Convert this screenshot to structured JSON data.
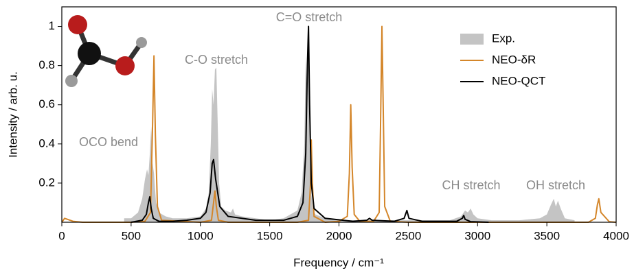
{
  "chart_data": {
    "type": "line",
    "xlabel": "Frequency / cm⁻¹",
    "ylabel": "Intensity / arb. u.",
    "xlim": [
      0,
      4000
    ],
    "ylim": [
      0,
      1.1
    ],
    "xticks": [
      0,
      500,
      1000,
      1500,
      2000,
      2500,
      3000,
      3500,
      4000
    ],
    "yticks": [
      0.2,
      0.4,
      0.6,
      0.8,
      1
    ],
    "legend": "upper right",
    "annotations": [
      "OCO bend",
      "C-O stretch",
      "C=O stretch",
      "CH stretch",
      "OH stretch"
    ],
    "series": [
      {
        "name": "Exp.",
        "color": "#c4c4c4",
        "style": "area",
        "x": [
          450,
          500,
          550,
          580,
          600,
          615,
          625,
          635,
          645,
          655,
          665,
          680,
          700,
          750,
          800,
          900,
          1000,
          1040,
          1060,
          1075,
          1085,
          1095,
          1105,
          1115,
          1125,
          1135,
          1150,
          1180,
          1220,
          1235,
          1250,
          1300,
          1400,
          1500,
          1600,
          1700,
          1730,
          1750,
          1760,
          1770,
          1778,
          1785,
          1795,
          1810,
          1830,
          1900,
          2000,
          2200,
          2500,
          2800,
          2880,
          2910,
          2930,
          2950,
          2970,
          3000,
          3100,
          3300,
          3450,
          3500,
          3530,
          3550,
          3565,
          3580,
          3600,
          3630,
          3700
        ],
        "values": [
          0.02,
          0.02,
          0.05,
          0.12,
          0.22,
          0.27,
          0.24,
          0.35,
          0.49,
          0.3,
          0.25,
          0.1,
          0.05,
          0.03,
          0.02,
          0.02,
          0.03,
          0.07,
          0.15,
          0.4,
          0.68,
          0.6,
          0.78,
          0.79,
          0.5,
          0.2,
          0.08,
          0.06,
          0.05,
          0.07,
          0.04,
          0.03,
          0.02,
          0.01,
          0.02,
          0.06,
          0.15,
          0.4,
          0.85,
          0.6,
          1.0,
          0.5,
          0.2,
          0.07,
          0.04,
          0.02,
          0.01,
          0.01,
          0.01,
          0.01,
          0.03,
          0.06,
          0.05,
          0.07,
          0.04,
          0.02,
          0.01,
          0.01,
          0.02,
          0.04,
          0.09,
          0.12,
          0.08,
          0.11,
          0.07,
          0.02,
          0.01
        ]
      },
      {
        "name": "NEO-δR",
        "color": "#d4862a",
        "style": "line",
        "x": [
          0,
          20,
          40,
          80,
          150,
          500,
          600,
          640,
          655,
          665,
          675,
          690,
          720,
          1000,
          1080,
          1095,
          1105,
          1115,
          1130,
          1200,
          1700,
          1780,
          1795,
          1800,
          1808,
          1820,
          1900,
          2000,
          2060,
          2075,
          2085,
          2095,
          2110,
          2150,
          2250,
          2290,
          2300,
          2310,
          2320,
          2330,
          2370,
          2500,
          3000,
          3800,
          3850,
          3865,
          3875,
          3890,
          3950,
          4000
        ],
        "values": [
          0,
          0.02,
          0.015,
          0.005,
          0,
          0,
          0.005,
          0.05,
          0.5,
          0.85,
          0.45,
          0.08,
          0.01,
          0,
          0.01,
          0.1,
          0.16,
          0.08,
          0.01,
          0,
          0,
          0.01,
          0.2,
          0.42,
          0.2,
          0.03,
          0,
          0.005,
          0.03,
          0.25,
          0.6,
          0.28,
          0.04,
          0.005,
          0.005,
          0.05,
          0.5,
          1.0,
          0.55,
          0.08,
          0.005,
          0,
          0,
          0,
          0.02,
          0.09,
          0.12,
          0.05,
          0.003,
          0
        ]
      },
      {
        "name": "NEO-QCT",
        "color": "#000000",
        "style": "line",
        "x": [
          500,
          580,
          610,
          625,
          635,
          645,
          660,
          700,
          800,
          900,
          1000,
          1040,
          1070,
          1085,
          1095,
          1110,
          1140,
          1200,
          1400,
          1600,
          1700,
          1740,
          1760,
          1772,
          1780,
          1788,
          1800,
          1820,
          1900,
          2100,
          2200,
          2220,
          2240,
          2400,
          2470,
          2490,
          2505,
          2600,
          2850,
          2890,
          2900,
          2910,
          2950,
          3080
        ],
        "values": [
          0,
          0.01,
          0.04,
          0.1,
          0.13,
          0.07,
          0.02,
          0.005,
          0.005,
          0.01,
          0.02,
          0.05,
          0.15,
          0.3,
          0.32,
          0.22,
          0.08,
          0.03,
          0.01,
          0.01,
          0.03,
          0.1,
          0.35,
          0.8,
          1.0,
          0.6,
          0.2,
          0.07,
          0.02,
          0.005,
          0.01,
          0.02,
          0.01,
          0.005,
          0.02,
          0.06,
          0.02,
          0.005,
          0.005,
          0.02,
          0.035,
          0.015,
          0.003,
          0
        ]
      }
    ]
  }
}
